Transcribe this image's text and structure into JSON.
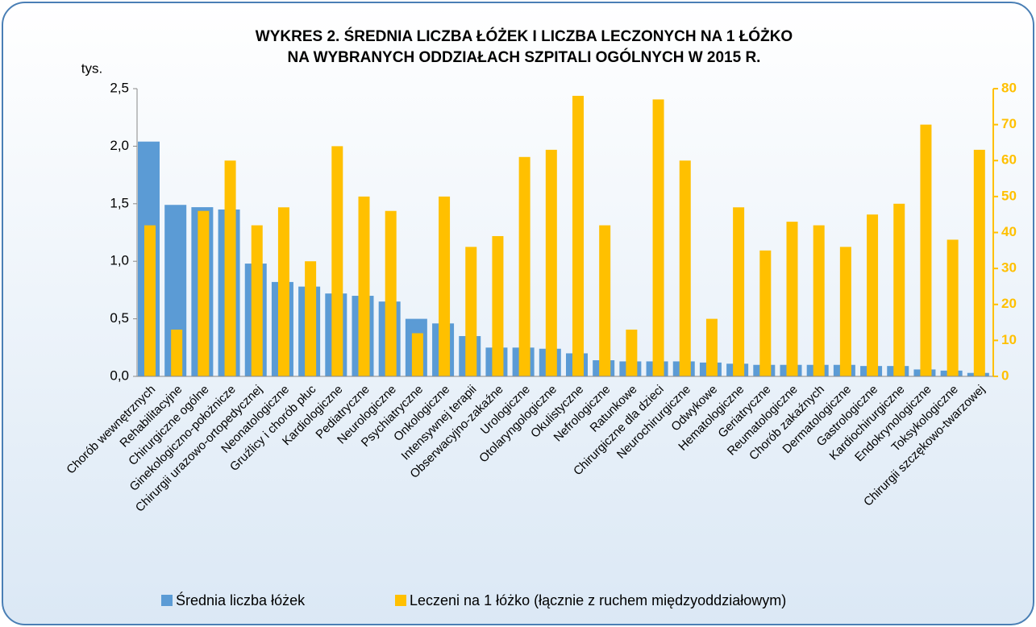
{
  "chart_data": {
    "type": "bar",
    "title": "WYKRES 2. ŚREDNIA LICZBA ŁÓŻEK I LICZBA LECZONYCH NA 1 ŁÓŻKO",
    "subtitle": "NA WYBRANYCH ODDZIAŁACH SZPITALI OGÓLNYCH W 2015 R.",
    "y_label": "tys.",
    "categories": [
      "Chorób wewnętrznych",
      "Rehabilitacyjne",
      "Chirurgiczne ogólne",
      "Ginekologiczno-położnicze",
      "Chirurgii urazowo-ortopedycznej",
      "Neonatologiczne",
      "Gruźlicy i chorób płuc",
      "Kardiologiczne",
      "Pediatryczne",
      "Neurologiczne",
      "Psychiatryczne",
      "Onkologiczne",
      "Intensywnej terapii",
      "Obserwacyjno-zakaźne",
      "Urologiczne",
      "Otolaryngologiczne",
      "Okulistyczne",
      "Nefrologiczne",
      "Ratunkowe",
      "Chirurgiczne dla dzieci",
      "Neurochirurgiczne",
      "Odwykowe",
      "Hematologiczne",
      "Geriatryczne",
      "Reumatologiczne",
      "Chorób zakaźnych",
      "Dermatologiczne",
      "Gastrologiczne",
      "Kardiochirurgiczne",
      "Endokrynologiczne",
      "Toksykologiczne",
      "Chirurgii szczękowo-twarzowej"
    ],
    "series": [
      {
        "name": "Średnia liczba łóżek",
        "color": "#5b9bd5",
        "axis": "y",
        "values": [
          2.04,
          1.49,
          1.47,
          1.45,
          0.98,
          0.82,
          0.78,
          0.72,
          0.7,
          0.65,
          0.5,
          0.46,
          0.35,
          0.25,
          0.25,
          0.24,
          0.2,
          0.14,
          0.13,
          0.13,
          0.13,
          0.12,
          0.11,
          0.1,
          0.1,
          0.1,
          0.1,
          0.09,
          0.09,
          0.06,
          0.05,
          0.03
        ]
      },
      {
        "name": "Leczeni na 1 łóżko (łącznie z ruchem międzyoddziałowym)",
        "color": "#ffc000",
        "axis": "y2",
        "values": [
          42,
          13,
          46,
          60,
          42,
          47,
          32,
          64,
          50,
          46,
          12,
          50,
          36,
          39,
          61,
          63,
          78,
          42,
          13,
          77,
          60,
          16,
          47,
          35,
          43,
          42,
          36,
          45,
          48,
          70,
          38,
          63
        ]
      }
    ],
    "ylim": [
      0,
      2.5
    ],
    "yticks": [
      {
        "value": 0,
        "label": "0,0"
      },
      {
        "value": 0.5,
        "label": "0,5"
      },
      {
        "value": 1,
        "label": "1,0"
      },
      {
        "value": 1.5,
        "label": "1,5"
      },
      {
        "value": 2,
        "label": "2,0"
      },
      {
        "value": 2.5,
        "label": "2,5"
      }
    ],
    "y2lim": [
      0,
      80
    ],
    "y2ticks": [
      0,
      10,
      20,
      30,
      40,
      50,
      60,
      70,
      80
    ]
  }
}
